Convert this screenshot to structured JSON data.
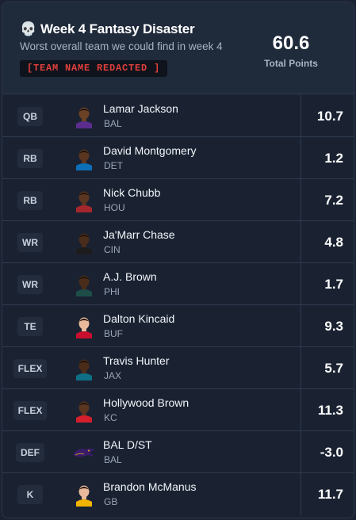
{
  "header": {
    "title": "Week 4 Fantasy Disaster",
    "subtitle": "Worst overall team we could find in week 4",
    "team_name": "[TEAM NAME REDACTED ]",
    "total_points": "60.6",
    "total_label": "Total Points",
    "icon": "skull-icon"
  },
  "players": [
    {
      "pos": "QB",
      "name": "Lamar Jackson",
      "team": "BAL",
      "points": "10.7",
      "jersey": "#5b2d8e",
      "skin": "#6b4226"
    },
    {
      "pos": "RB",
      "name": "David Montgomery",
      "team": "DET",
      "points": "1.2",
      "jersey": "#0d6fb8",
      "skin": "#5a3520"
    },
    {
      "pos": "RB",
      "name": "Nick Chubb",
      "team": "HOU",
      "points": "7.2",
      "jersey": "#a3272d",
      "skin": "#5a3520"
    },
    {
      "pos": "WR",
      "name": "Ja'Marr Chase",
      "team": "CIN",
      "points": "4.8",
      "jersey": "#1c1c1c",
      "skin": "#4a2c1a"
    },
    {
      "pos": "WR",
      "name": "A.J. Brown",
      "team": "PHI",
      "points": "1.7",
      "jersey": "#1e4d48",
      "skin": "#4a2c1a"
    },
    {
      "pos": "TE",
      "name": "Dalton Kincaid",
      "team": "BUF",
      "points": "9.3",
      "jersey": "#c8102e",
      "skin": "#e8b99a"
    },
    {
      "pos": "FLEX",
      "name": "Travis Hunter",
      "team": "JAX",
      "points": "5.7",
      "jersey": "#0f6f86",
      "skin": "#4a2c1a"
    },
    {
      "pos": "FLEX",
      "name": "Hollywood Brown",
      "team": "KC",
      "points": "11.3",
      "jersey": "#d51f2b",
      "skin": "#5a3520"
    },
    {
      "pos": "DEF",
      "name": "BAL D/ST",
      "team": "BAL",
      "points": "-3.0",
      "jersey": "#3b1c6b",
      "skin": "#3b1c6b"
    },
    {
      "pos": "K",
      "name": "Brandon McManus",
      "team": "GB",
      "points": "11.7",
      "jersey": "#f2b400",
      "skin": "#e8b99a"
    }
  ],
  "colors": {
    "background": "#1a2232",
    "header_bg": "#1f2a3b",
    "redacted_text": "#e0403c",
    "divider": "#2f3a4d"
  }
}
